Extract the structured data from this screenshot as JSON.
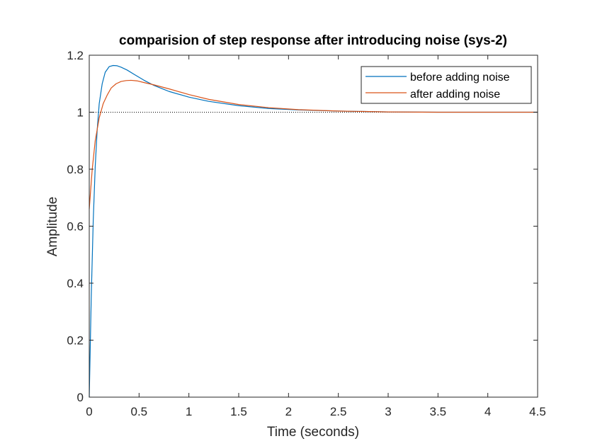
{
  "chart_data": {
    "type": "line",
    "title": "comparision of step response after introducing noise (sys-2)",
    "xlabel": "Time (seconds)",
    "ylabel": "Amplitude",
    "xlim": [
      0,
      4.5
    ],
    "ylim": [
      0,
      1.2
    ],
    "xticks": [
      "0",
      "0.5",
      "1",
      "1.5",
      "2",
      "2.5",
      "3",
      "3.5",
      "4",
      "4.5"
    ],
    "yticks": [
      "0",
      "0.2",
      "0.4",
      "0.6",
      "0.8",
      "1",
      "1.2"
    ],
    "grid": false,
    "legend_position": "top-right",
    "reference_line": {
      "y": 1,
      "style": "dotted",
      "color": "#000000"
    },
    "series": [
      {
        "name": "before adding noise",
        "color": "#0072BD",
        "x": [
          0,
          0.02,
          0.04,
          0.06,
          0.08,
          0.1,
          0.13,
          0.16,
          0.2,
          0.24,
          0.28,
          0.32,
          0.38,
          0.45,
          0.55,
          0.65,
          0.8,
          1.0,
          1.2,
          1.5,
          1.8,
          2.1,
          2.5,
          3.0,
          3.5,
          4.0,
          4.5
        ],
        "y": [
          0,
          0.35,
          0.62,
          0.81,
          0.94,
          1.03,
          1.1,
          1.14,
          1.16,
          1.164,
          1.163,
          1.158,
          1.148,
          1.133,
          1.112,
          1.094,
          1.073,
          1.053,
          1.038,
          1.023,
          1.013,
          1.008,
          1.004,
          1.001,
          1.0,
          1.0,
          1.0
        ]
      },
      {
        "name": "after adding noise",
        "color": "#D95319",
        "x": [
          0,
          0.03,
          0.06,
          0.1,
          0.14,
          0.18,
          0.22,
          0.27,
          0.32,
          0.37,
          0.42,
          0.48,
          0.55,
          0.65,
          0.8,
          1.0,
          1.2,
          1.5,
          1.8,
          2.1,
          2.5,
          3.0,
          3.5,
          4.0,
          4.5
        ],
        "y": [
          0.66,
          0.8,
          0.9,
          0.98,
          1.03,
          1.06,
          1.085,
          1.1,
          1.108,
          1.111,
          1.112,
          1.11,
          1.104,
          1.096,
          1.082,
          1.062,
          1.045,
          1.027,
          1.016,
          1.009,
          1.004,
          1.001,
          1.0,
          1.0,
          1.0
        ]
      }
    ]
  }
}
